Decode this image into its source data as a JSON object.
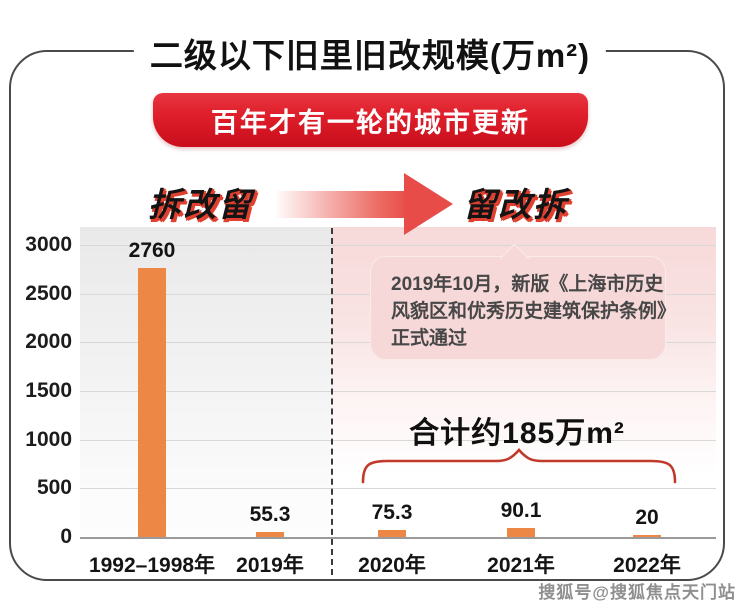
{
  "title": "二级以下旧里旧改规模(万m²)",
  "banner": {
    "text": "百年才有一轮的城市更新"
  },
  "phases": {
    "left_label": "拆改留",
    "right_label": "留改拆"
  },
  "callout": {
    "lines": [
      "2019年10月，新版《上海市历史",
      "风貌区和优秀历史建筑保护条例》",
      "正式通过"
    ]
  },
  "total_annotation": "合计约185万m²",
  "watermark": "搜狐号@搜狐焦点天门站",
  "colors": {
    "bar": "#ED8746",
    "banner_red": "#DD1F2B",
    "brace_red": "#C0392B",
    "accent_shadow_red": "#E0402F",
    "left_bg_gray": "#E9E9E9",
    "right_bg_pink": "#F7D9D9"
  },
  "chart_data": {
    "type": "bar",
    "title": "二级以下旧里旧改规模(万m²)",
    "categories": [
      "1992–1998年",
      "2019年",
      "2020年",
      "2021年",
      "2022年"
    ],
    "values": [
      2760,
      55.3,
      75.3,
      90.1,
      20
    ],
    "value_labels": [
      "2760",
      "55.3",
      "75.3",
      "90.1",
      "20"
    ],
    "xlabel": "",
    "ylabel": "",
    "ylim": [
      0,
      3000
    ],
    "yticks": [
      0,
      500,
      1000,
      1500,
      2000,
      2500,
      3000
    ],
    "grid": true,
    "legend": false,
    "divider_after_index": 1,
    "left_section_label": "拆改留",
    "right_section_label": "留改拆",
    "total_annotation": {
      "label": "合计约185万m²",
      "covers": [
        "2020年",
        "2021年",
        "2022年"
      ],
      "total_value": 185
    }
  }
}
